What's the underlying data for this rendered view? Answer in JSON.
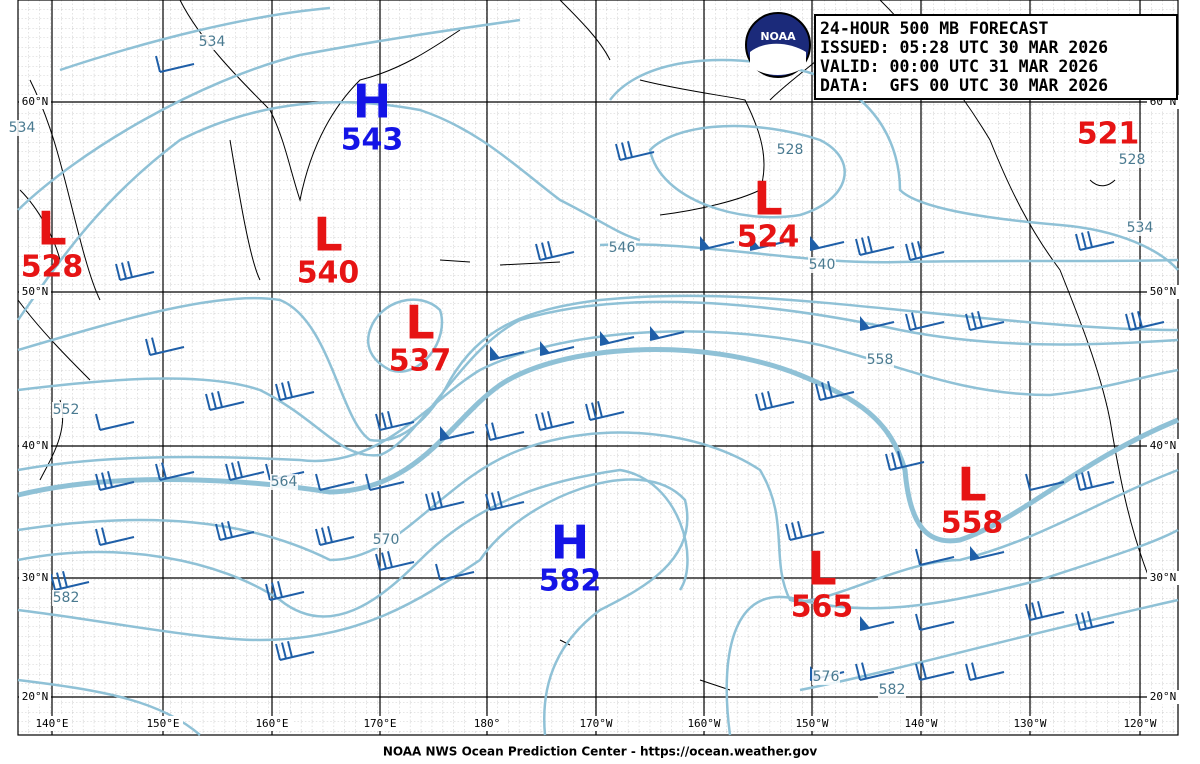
{
  "header": {
    "lines": [
      "24-HOUR 500 MB FORECAST",
      "ISSUED: 05:28 UTC 30 MAR 2026",
      "VALID:  00:00 UTC 31 MAR 2026",
      "DATA:  GFS 00 UTC 30 MAR 2026"
    ]
  },
  "logo": "NOAA",
  "centers": [
    {
      "type": "H",
      "value": 543
    },
    {
      "type": "L",
      "value": 528
    },
    {
      "type": "L",
      "value": 540
    },
    {
      "type": "L",
      "value": 537
    },
    {
      "type": "L",
      "value": 524
    },
    {
      "type": "L",
      "value": 521
    },
    {
      "type": "H",
      "value": 582
    },
    {
      "type": "L",
      "value": 565
    },
    {
      "type": "L",
      "value": 558
    }
  ],
  "contour_labels": [
    534,
    534,
    528,
    546,
    540,
    558,
    534,
    528,
    552,
    564,
    570,
    582,
    576,
    582
  ],
  "lat_labels": [
    "60°N",
    "50°N",
    "40°N",
    "30°N",
    "20°N"
  ],
  "lon_labels": [
    "140°E",
    "150°E",
    "160°E",
    "170°E",
    "180°",
    "170°W",
    "160°W",
    "150°W",
    "140°W",
    "130°W",
    "120°W"
  ],
  "footer": "NOAA NWS Ocean Prediction Center - https://ocean.weather.gov"
}
